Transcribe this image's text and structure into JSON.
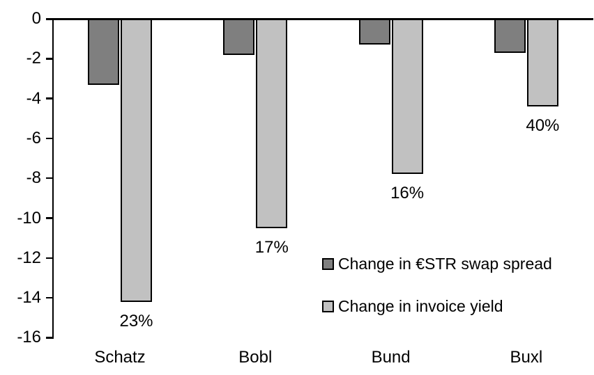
{
  "chart_data": {
    "type": "bar",
    "title": "",
    "xlabel": "",
    "ylabel": "",
    "categories": [
      "Schatz",
      "Bobl",
      "Bund",
      "Buxl"
    ],
    "series": [
      {
        "name": "Change in €STR swap spread",
        "color": "#7f7f7f",
        "values": [
          -3.3,
          -1.8,
          -1.3,
          -1.7
        ]
      },
      {
        "name": "Change in invoice yield",
        "color": "#c1c1c1",
        "values": [
          -14.2,
          -10.5,
          -7.8,
          -4.4
        ],
        "data_labels": [
          "23%",
          "17%",
          "16%",
          "40%"
        ]
      }
    ],
    "ylim": [
      -16,
      0
    ],
    "yticks": [
      0,
      -2,
      -4,
      -6,
      -8,
      -10,
      -12,
      -14,
      -16
    ],
    "grid": false,
    "legend_position": "inside-right",
    "axis_color": "#000000",
    "background_color": "#ffffff"
  }
}
